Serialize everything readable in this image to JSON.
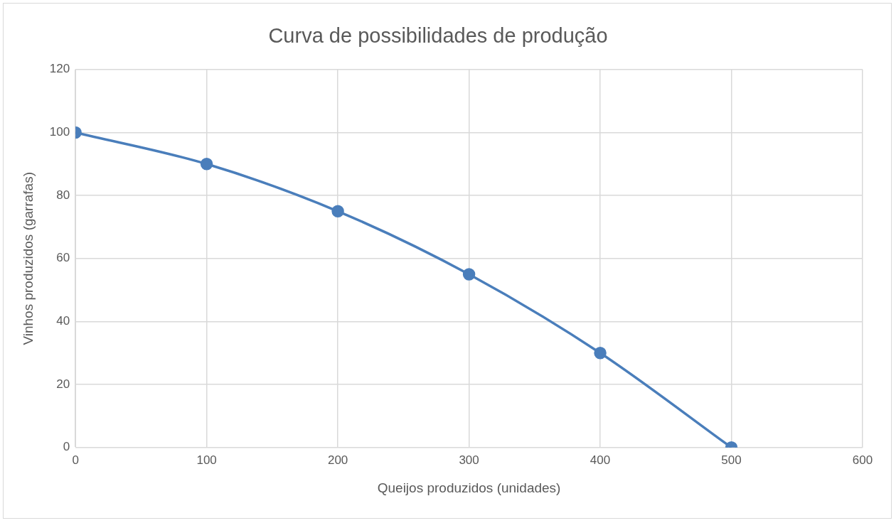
{
  "chart_data": {
    "type": "line",
    "title": "Curva de possibilidades de produção",
    "xlabel": "Queijos produzidos (unidades)",
    "ylabel": "Vinhos produzidos (garrafas)",
    "x": [
      0,
      100,
      200,
      300,
      400,
      500
    ],
    "series": [
      {
        "color": "#4a7ebb",
        "values": [
          100,
          90,
          75,
          55,
          30,
          0
        ]
      }
    ],
    "xlim": [
      0,
      600
    ],
    "xticks": [
      0,
      100,
      200,
      300,
      400,
      500,
      600
    ],
    "ylim": [
      0,
      120
    ],
    "yticks": [
      0,
      20,
      40,
      60,
      80,
      100,
      120
    ],
    "grid": true,
    "legend": false,
    "marker": "circle",
    "line_style": "solid"
  }
}
